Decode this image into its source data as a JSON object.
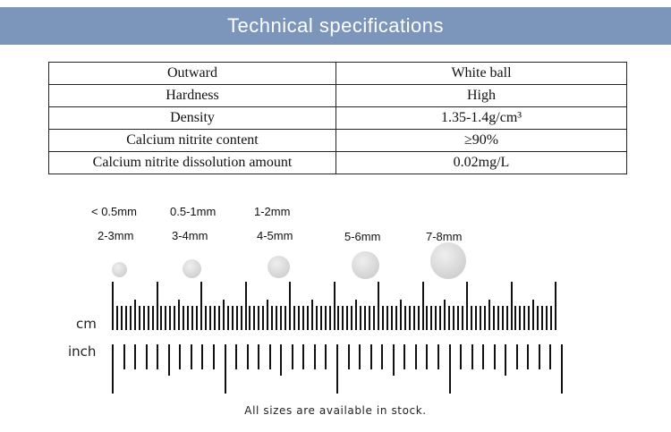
{
  "header": {
    "title": "Technical specifications"
  },
  "specs": [
    {
      "property": "Outward",
      "value": "White ball"
    },
    {
      "property": "Hardness",
      "value": "High"
    },
    {
      "property": "Density",
      "value": "1.35-1.4g/cm³"
    },
    {
      "property": "Calcium nitrite content",
      "value": "≥90%"
    },
    {
      "property": "Calcium nitrite dissolution amount",
      "value": "0.02mg/L"
    }
  ],
  "sizes_row1": [
    "< 0.5mm",
    "0.5-1mm",
    "1-2mm"
  ],
  "sizes_row2": [
    "2-3mm",
    "3-4mm",
    "4-5mm",
    "5-6mm",
    "7-8mm"
  ],
  "ruler": {
    "cm_label": "cm",
    "inch_label": "inch"
  },
  "note": "All sizes are available in stock."
}
